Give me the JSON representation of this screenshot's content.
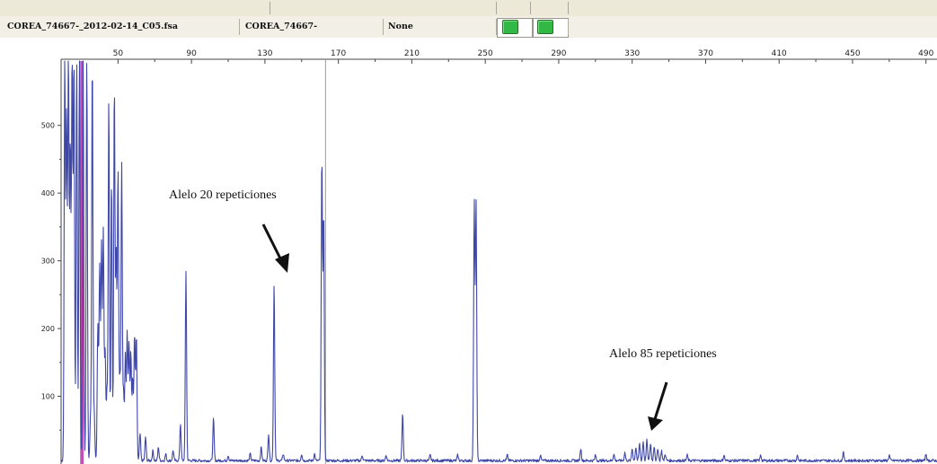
{
  "header": {
    "file_name": "COREA_74667-_2012-02-14_C05.fsa",
    "sample_name": "COREA_74667-",
    "panel": "None"
  },
  "buttons": [
    {
      "icon": "green-square-icon",
      "color": "#31b845"
    },
    {
      "icon": "green-square-icon",
      "color": "#31b845"
    }
  ],
  "annotations": [
    {
      "label": "Alelo 20 repeticiones"
    },
    {
      "label": "Alelo 85 repeticiones"
    }
  ],
  "chart_data": {
    "type": "line",
    "x_ticks": [
      "50",
      "90",
      "130",
      "170",
      "210",
      "250",
      "290",
      "330",
      "370",
      "410",
      "450",
      "490"
    ],
    "y_ticks": [
      "100",
      "200",
      "300",
      "400",
      "500"
    ],
    "xlim": [
      19,
      496
    ],
    "ylim": [
      0,
      595
    ],
    "line_color": "#3f47a8",
    "ladder_color": "#c24fb5",
    "cursor_x": 163,
    "peaks": [
      {
        "x": 21,
        "y": 595
      },
      {
        "x": 22,
        "y": 510
      },
      {
        "x": 23,
        "y": 595
      },
      {
        "x": 24,
        "y": 470
      },
      {
        "x": 25,
        "y": 595
      },
      {
        "x": 26,
        "y": 595
      },
      {
        "x": 27.5,
        "y": 595
      },
      {
        "x": 29,
        "y": 595
      },
      {
        "x": 31,
        "y": 595
      },
      {
        "x": 33,
        "y": 595
      },
      {
        "x": 35,
        "y": 60
      },
      {
        "x": 36,
        "y": 595
      },
      {
        "x": 37,
        "y": 70
      },
      {
        "x": 39,
        "y": 200
      },
      {
        "x": 40,
        "y": 285
      },
      {
        "x": 41,
        "y": 320
      },
      {
        "x": 42,
        "y": 340
      },
      {
        "x": 43,
        "y": 160
      },
      {
        "x": 44,
        "y": 100
      },
      {
        "x": 45,
        "y": 535
      },
      {
        "x": 46.5,
        "y": 420
      },
      {
        "x": 48,
        "y": 555
      },
      {
        "x": 49,
        "y": 310
      },
      {
        "x": 50,
        "y": 430
      },
      {
        "x": 51,
        "y": 120
      },
      {
        "x": 52,
        "y": 440
      },
      {
        "x": 53,
        "y": 100
      },
      {
        "x": 54,
        "y": 155
      },
      {
        "x": 55,
        "y": 190
      },
      {
        "x": 56,
        "y": 175
      },
      {
        "x": 57,
        "y": 160
      },
      {
        "x": 58,
        "y": 120
      },
      {
        "x": 59,
        "y": 185
      },
      {
        "x": 60,
        "y": 185
      },
      {
        "x": 62,
        "y": 40
      },
      {
        "x": 65,
        "y": 35
      },
      {
        "x": 69,
        "y": 15
      },
      {
        "x": 72,
        "y": 20
      },
      {
        "x": 76,
        "y": 10
      },
      {
        "x": 80,
        "y": 15
      },
      {
        "x": 84,
        "y": 55
      },
      {
        "x": 87,
        "y": 280
      },
      {
        "x": 102,
        "y": 62
      },
      {
        "x": 110,
        "y": 8
      },
      {
        "x": 122,
        "y": 10
      },
      {
        "x": 128,
        "y": 20
      },
      {
        "x": 132,
        "y": 40
      },
      {
        "x": 135,
        "y": 262
      },
      {
        "x": 140,
        "y": 10
      },
      {
        "x": 150,
        "y": 10
      },
      {
        "x": 157,
        "y": 10
      },
      {
        "x": 161,
        "y": 450
      },
      {
        "x": 162,
        "y": 365
      },
      {
        "x": 183,
        "y": 8
      },
      {
        "x": 196,
        "y": 8
      },
      {
        "x": 205,
        "y": 70
      },
      {
        "x": 220,
        "y": 8
      },
      {
        "x": 235,
        "y": 8
      },
      {
        "x": 244,
        "y": 380
      },
      {
        "x": 245,
        "y": 380
      },
      {
        "x": 262,
        "y": 8
      },
      {
        "x": 280,
        "y": 8
      },
      {
        "x": 302,
        "y": 18
      },
      {
        "x": 310,
        "y": 8
      },
      {
        "x": 320,
        "y": 10
      },
      {
        "x": 326,
        "y": 12
      },
      {
        "x": 330,
        "y": 18
      },
      {
        "x": 332,
        "y": 20
      },
      {
        "x": 334,
        "y": 25
      },
      {
        "x": 336,
        "y": 28
      },
      {
        "x": 338,
        "y": 30
      },
      {
        "x": 340,
        "y": 25
      },
      {
        "x": 342,
        "y": 22
      },
      {
        "x": 344,
        "y": 18
      },
      {
        "x": 346,
        "y": 15
      },
      {
        "x": 348,
        "y": 10
      },
      {
        "x": 360,
        "y": 8
      },
      {
        "x": 380,
        "y": 8
      },
      {
        "x": 400,
        "y": 8
      },
      {
        "x": 420,
        "y": 8
      },
      {
        "x": 445,
        "y": 12
      },
      {
        "x": 470,
        "y": 8
      },
      {
        "x": 490,
        "y": 10
      }
    ],
    "ladder_peaks": [
      {
        "x": 30
      },
      {
        "x": 30.7
      }
    ]
  }
}
